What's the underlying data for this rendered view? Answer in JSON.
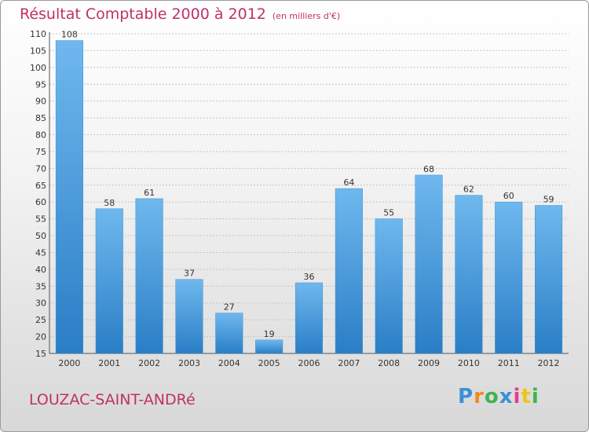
{
  "title": "Résultat Comptable 2000 à 2012",
  "subtitle": "(en milliers d'€)",
  "commune": "LOUZAC-SAINT-ANDRé",
  "brand": {
    "letters": [
      "P",
      "r",
      "o",
      "x",
      "i",
      "t",
      "i"
    ],
    "colors": [
      "#3b8fd9",
      "#f08a1c",
      "#3fb34f",
      "#3b8fd9",
      "#e83c8c",
      "#f0c419",
      "#3fb34f"
    ]
  },
  "colors": {
    "bar": "#4a9fe0",
    "bar_light": "#6fb8ee",
    "bar_dark": "#2a7ec6",
    "text": "#c0306a"
  },
  "chart_data": {
    "type": "bar",
    "categories": [
      "2000",
      "2001",
      "2002",
      "2003",
      "2004",
      "2005",
      "2006",
      "2007",
      "2008",
      "2009",
      "2010",
      "2011",
      "2012"
    ],
    "values": [
      108,
      58,
      61,
      37,
      27,
      19,
      36,
      64,
      55,
      68,
      62,
      60,
      59
    ],
    "yticks": [
      15,
      20,
      25,
      30,
      35,
      40,
      45,
      50,
      55,
      60,
      65,
      70,
      75,
      80,
      85,
      90,
      95,
      100,
      105,
      110
    ],
    "ylim": [
      15,
      110
    ],
    "grid": true,
    "legend": "none"
  }
}
